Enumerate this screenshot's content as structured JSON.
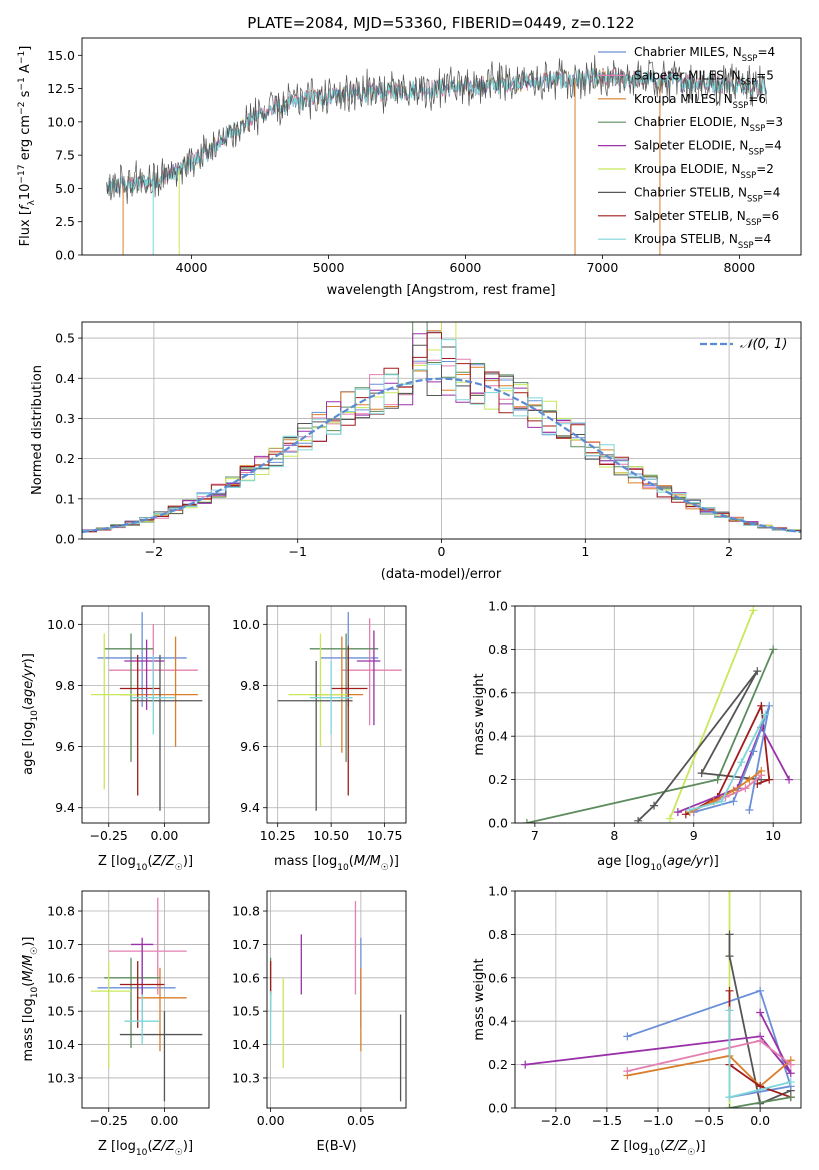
{
  "colors": {
    "chabrier_miles": "#6A8FD8",
    "salpeter_miles": "#E47FB0",
    "kroupa_miles": "#D97E2A",
    "chabrier_elodie": "#5E8B5E",
    "salpeter_elodie": "#9932A8",
    "kroupa_elodie": "#C8E85A",
    "chabrier_stelib": "#555555",
    "salpeter_stelib": "#A01C1C",
    "kroupa_stelib": "#7ED6D8",
    "normal": "#5B8BD4"
  },
  "chart_data": [
    {
      "id": "spectrum",
      "type": "line",
      "title": "PLATE=2084, MJD=53360, FIBERID=0449, z=0.122",
      "xlabel": "wavelength [Angstrom, rest frame]",
      "ylabel": "Flux [f_λ10^-17 erg cm^-2 s^-1 A^-1]",
      "xlim": [
        3200,
        8450
      ],
      "ylim": [
        0,
        16.3
      ],
      "xticks": [
        4000,
        5000,
        6000,
        7000,
        8000
      ],
      "yticks": [
        0.0,
        2.5,
        5.0,
        7.5,
        10.0,
        12.5,
        15.0
      ],
      "legend": "top-right",
      "legend_labels": [
        "Chabrier MILES, N_SSP=4",
        "Salpeter MILES, N_SSP=5",
        "Kroupa MILES, N_SSP=6",
        "Chabrier ELODIE, N_SSP=3",
        "Salpeter ELODIE, N_SSP=4",
        "Kroupa ELODIE, N_SSP=2",
        "Chabrier STELIB, N_SSP=4",
        "Salpeter STELIB, N_SSP=6",
        "Kroupa STELIB, N_SSP=4"
      ],
      "continuum": {
        "x": [
          3370,
          3500,
          3700,
          3900,
          4100,
          4300,
          4500,
          4700,
          4900,
          5100,
          5300,
          5500,
          5800,
          6000,
          6300,
          6600,
          6800,
          7000,
          7300,
          7600,
          7900,
          8200
        ],
        "y": [
          5.0,
          5.2,
          5.5,
          6.3,
          7.6,
          9.3,
          10.6,
          11.3,
          11.8,
          12.1,
          12.2,
          12.3,
          12.5,
          12.6,
          12.9,
          13.1,
          13.2,
          13.3,
          13.2,
          13.0,
          12.8,
          12.7
        ]
      }
    },
    {
      "id": "residuals",
      "type": "bar",
      "xlabel": "(data-model)/error",
      "ylabel": "Normed distribution",
      "xlim": [
        -2.5,
        2.5
      ],
      "ylim": [
        0,
        0.54
      ],
      "xticks": [
        -2,
        -1,
        0,
        1,
        2
      ],
      "xtick_labels": [
        "−2",
        "−1",
        "0",
        "1",
        "2"
      ],
      "yticks": [
        0.0,
        0.1,
        0.2,
        0.3,
        0.4,
        0.5
      ],
      "bin_width": 0.1,
      "legend": "top-right",
      "legend_label": "𝒩(0, 1)"
    },
    {
      "id": "age_vs_Z",
      "type": "scatter",
      "xlabel": "Z [log10(Z/Z☉)]",
      "ylabel": "age  [log10(age/yr)]",
      "xlim": [
        -0.37,
        0.2
      ],
      "ylim": [
        9.35,
        10.06
      ],
      "xticks": [
        -0.25,
        0.0
      ],
      "xtick_labels": [
        "−0.25",
        "0.00"
      ],
      "yticks": [
        9.4,
        9.6,
        9.8,
        10.0
      ],
      "points": [
        {
          "c": "chabrier_miles",
          "x": -0.1,
          "y": 9.89,
          "xe": [
            -0.3,
            0.1
          ],
          "ye": [
            9.73,
            10.04
          ]
        },
        {
          "c": "salpeter_miles",
          "x": -0.05,
          "y": 9.85,
          "xe": [
            -0.25,
            0.15
          ],
          "ye": [
            9.75,
            10.0
          ]
        },
        {
          "c": "kroupa_miles",
          "x": 0.05,
          "y": 9.77,
          "xe": [
            -0.2,
            0.15
          ],
          "ye": [
            9.6,
            9.96
          ]
        },
        {
          "c": "chabrier_elodie",
          "x": -0.15,
          "y": 9.92,
          "xe": [
            -0.27,
            -0.05
          ],
          "ye": [
            9.55,
            9.97
          ]
        },
        {
          "c": "salpeter_elodie",
          "x": -0.08,
          "y": 9.88,
          "xe": [
            -0.18,
            0.0
          ],
          "ye": [
            9.72,
            9.95
          ]
        },
        {
          "c": "kroupa_elodie",
          "x": -0.27,
          "y": 9.77,
          "xe": [
            -0.33,
            -0.12
          ],
          "ye": [
            9.46,
            9.97
          ]
        },
        {
          "c": "chabrier_stelib",
          "x": -0.02,
          "y": 9.75,
          "xe": [
            -0.15,
            0.17
          ],
          "ye": [
            9.39,
            9.9
          ]
        },
        {
          "c": "salpeter_stelib",
          "x": -0.12,
          "y": 9.79,
          "xe": [
            -0.2,
            -0.02
          ],
          "ye": [
            9.44,
            9.9
          ]
        },
        {
          "c": "kroupa_stelib",
          "x": -0.05,
          "y": 9.76,
          "xe": [
            -0.15,
            0.05
          ],
          "ye": [
            9.64,
            9.9
          ]
        }
      ]
    },
    {
      "id": "age_vs_mass",
      "type": "scatter",
      "xlabel": "mass [log10(M/M☉)]",
      "ylabel": "",
      "xlim": [
        10.2,
        10.85
      ],
      "ylim": [
        9.35,
        10.06
      ],
      "xticks": [
        10.25,
        10.5,
        10.75
      ],
      "yticks": [
        9.4,
        9.6,
        9.8,
        10.0
      ],
      "points": [
        {
          "c": "chabrier_miles",
          "x": 10.58,
          "y": 9.89,
          "xe": [
            10.45,
            10.72
          ],
          "ye": [
            9.73,
            10.04
          ]
        },
        {
          "c": "salpeter_miles",
          "x": 10.68,
          "y": 9.85,
          "xe": [
            10.55,
            10.83
          ],
          "ye": [
            9.67,
            10.02
          ]
        },
        {
          "c": "kroupa_miles",
          "x": 10.55,
          "y": 9.77,
          "xe": [
            10.4,
            10.65
          ],
          "ye": [
            9.58,
            9.96
          ]
        },
        {
          "c": "chabrier_elodie",
          "x": 10.57,
          "y": 9.92,
          "xe": [
            10.4,
            10.72
          ],
          "ye": [
            9.55,
            9.97
          ]
        },
        {
          "c": "salpeter_elodie",
          "x": 10.7,
          "y": 9.88,
          "xe": [
            10.62,
            10.73
          ],
          "ye": [
            9.67,
            9.98
          ]
        },
        {
          "c": "kroupa_elodie",
          "x": 10.45,
          "y": 9.77,
          "xe": [
            10.3,
            10.58
          ],
          "ye": [
            9.6,
            9.97
          ]
        },
        {
          "c": "chabrier_stelib",
          "x": 10.43,
          "y": 9.75,
          "xe": [
            10.25,
            10.6
          ],
          "ye": [
            9.39,
            9.88
          ]
        },
        {
          "c": "salpeter_stelib",
          "x": 10.58,
          "y": 9.79,
          "xe": [
            10.5,
            10.67
          ],
          "ye": [
            9.44,
            9.93
          ]
        },
        {
          "c": "kroupa_stelib",
          "x": 10.5,
          "y": 9.76,
          "xe": [
            10.4,
            10.6
          ],
          "ye": [
            9.64,
            9.88
          ]
        }
      ]
    },
    {
      "id": "weight_vs_age",
      "type": "line",
      "xlabel": "age  [log10(age/yr)]",
      "ylabel": "mass weight",
      "xlim": [
        6.75,
        10.35
      ],
      "ylim": [
        0,
        1.0
      ],
      "xticks": [
        7,
        8,
        9,
        10
      ],
      "yticks": [
        0.0,
        0.2,
        0.4,
        0.6,
        0.8,
        1.0
      ],
      "series": [
        {
          "c": "kroupa_elodie",
          "x": [
            8.7,
            9.75
          ],
          "y": [
            0.02,
            0.98
          ]
        },
        {
          "c": "chabrier_elodie",
          "x": [
            6.9,
            9.3,
            10.0
          ],
          "y": [
            0.0,
            0.2,
            0.8
          ]
        },
        {
          "c": "chabrier_stelib",
          "x": [
            8.3,
            8.5,
            9.8,
            9.1,
            9.85
          ],
          "y": [
            0.01,
            0.08,
            0.7,
            0.23,
            0.2
          ]
        },
        {
          "c": "salpeter_stelib",
          "x": [
            8.9,
            9.3,
            9.85,
            9.95,
            9.8
          ],
          "y": [
            0.04,
            0.12,
            0.54,
            0.2,
            0.18
          ]
        },
        {
          "c": "salpeter_elodie",
          "x": [
            8.8,
            9.55,
            9.85,
            10.2
          ],
          "y": [
            0.05,
            0.16,
            0.44,
            0.2
          ]
        },
        {
          "c": "chabrier_miles",
          "x": [
            9.0,
            9.5,
            9.75,
            9.95,
            9.7
          ],
          "y": [
            0.05,
            0.1,
            0.33,
            0.54,
            0.06
          ]
        },
        {
          "c": "salpeter_miles",
          "x": [
            9.0,
            9.4,
            9.65,
            9.85
          ],
          "y": [
            0.06,
            0.12,
            0.16,
            0.22
          ]
        },
        {
          "c": "kroupa_miles",
          "x": [
            8.95,
            9.25,
            9.5,
            9.7,
            9.85
          ],
          "y": [
            0.05,
            0.1,
            0.15,
            0.2,
            0.24
          ]
        },
        {
          "c": "kroupa_stelib",
          "x": [
            8.95,
            9.35,
            9.6,
            9.9
          ],
          "y": [
            0.06,
            0.1,
            0.28,
            0.5
          ]
        }
      ]
    },
    {
      "id": "mass_vs_Z",
      "type": "scatter",
      "xlabel": "Z [log10(Z/Z☉)]",
      "ylabel": "mass [log10(M/M☉)]",
      "xlim": [
        -0.37,
        0.2
      ],
      "ylim": [
        10.21,
        10.86
      ],
      "xticks": [
        -0.25,
        0.0
      ],
      "xtick_labels": [
        "−0.25",
        "0.00"
      ],
      "yticks": [
        10.3,
        10.4,
        10.5,
        10.6,
        10.7,
        10.8
      ],
      "points": [
        {
          "c": "chabrier_miles",
          "x": -0.1,
          "y": 10.57,
          "xe": [
            -0.3,
            0.05
          ],
          "ye": [
            10.45,
            10.7
          ]
        },
        {
          "c": "salpeter_miles",
          "x": -0.03,
          "y": 10.68,
          "xe": [
            -0.25,
            0.1
          ],
          "ye": [
            10.55,
            10.84
          ]
        },
        {
          "c": "kroupa_miles",
          "x": -0.02,
          "y": 10.54,
          "xe": [
            -0.12,
            0.1
          ],
          "ye": [
            10.38,
            10.63
          ]
        },
        {
          "c": "chabrier_elodie",
          "x": -0.15,
          "y": 10.6,
          "xe": [
            -0.27,
            -0.02
          ],
          "ye": [
            10.39,
            10.66
          ]
        },
        {
          "c": "salpeter_elodie",
          "x": -0.1,
          "y": 10.7,
          "xe": [
            -0.15,
            -0.05
          ],
          "ye": [
            10.55,
            10.72
          ]
        },
        {
          "c": "kroupa_elodie",
          "x": -0.25,
          "y": 10.56,
          "xe": [
            -0.33,
            -0.15
          ],
          "ye": [
            10.33,
            10.65
          ]
        },
        {
          "c": "chabrier_stelib",
          "x": 0.0,
          "y": 10.43,
          "xe": [
            -0.2,
            0.17
          ],
          "ye": [
            10.23,
            10.5
          ]
        },
        {
          "c": "salpeter_stelib",
          "x": -0.12,
          "y": 10.58,
          "xe": [
            -0.2,
            0.0
          ],
          "ye": [
            10.45,
            10.65
          ]
        },
        {
          "c": "kroupa_stelib",
          "x": -0.1,
          "y": 10.47,
          "xe": [
            -0.18,
            -0.02
          ],
          "ye": [
            10.4,
            10.55
          ]
        }
      ]
    },
    {
      "id": "mass_vs_ebv",
      "type": "scatter",
      "xlabel": "E(B-V)",
      "ylabel": "",
      "xlim": [
        -0.002,
        0.075
      ],
      "ylim": [
        10.21,
        10.86
      ],
      "xticks": [
        0.0,
        0.05
      ],
      "xtick_labels": [
        "0.00",
        "0.05"
      ],
      "yticks": [
        10.3,
        10.4,
        10.5,
        10.6,
        10.7,
        10.8
      ],
      "points": [
        {
          "c": "chabrier_miles",
          "x": 0.05,
          "y": 10.57,
          "ye": [
            10.45,
            10.72
          ]
        },
        {
          "c": "salpeter_miles",
          "x": 0.047,
          "y": 10.68,
          "ye": [
            10.55,
            10.83
          ]
        },
        {
          "c": "kroupa_miles",
          "x": 0.05,
          "y": 10.54,
          "ye": [
            10.38,
            10.63
          ]
        },
        {
          "c": "chabrier_elodie",
          "x": 0.0,
          "y": 10.6,
          "ye": [
            10.5,
            10.66
          ]
        },
        {
          "c": "salpeter_elodie",
          "x": 0.017,
          "y": 10.65,
          "ye": [
            10.55,
            10.73
          ]
        },
        {
          "c": "kroupa_elodie",
          "x": 0.007,
          "y": 10.46,
          "ye": [
            10.33,
            10.6
          ]
        },
        {
          "c": "chabrier_stelib",
          "x": 0.072,
          "y": 10.36,
          "ye": [
            10.23,
            10.49
          ]
        },
        {
          "c": "salpeter_stelib",
          "x": 0.0,
          "y": 10.6,
          "ye": [
            10.55,
            10.65
          ]
        },
        {
          "c": "kroupa_stelib",
          "x": 0.0,
          "y": 10.47,
          "ye": [
            10.4,
            10.56
          ]
        }
      ]
    },
    {
      "id": "weight_vs_Z",
      "type": "line",
      "xlabel": "Z [log10(Z/Z☉)]",
      "ylabel": "mass weight",
      "xlim": [
        -2.4,
        0.4
      ],
      "ylim": [
        0,
        1.0
      ],
      "xticks": [
        -2.0,
        -1.5,
        -1.0,
        -0.5,
        0.0
      ],
      "xtick_labels": [
        "−2.0",
        "−1.5",
        "−1.0",
        "−0.5",
        "0.0"
      ],
      "yticks": [
        0.0,
        0.2,
        0.4,
        0.6,
        0.8,
        1.0
      ],
      "series": [
        {
          "c": "kroupa_elodie",
          "x": [
            -0.3,
            -0.3
          ],
          "y": [
            1.0,
            0.0
          ]
        },
        {
          "c": "chabrier_stelib",
          "x": [
            -0.3,
            -0.3,
            0.0,
            0.3
          ],
          "y": [
            0.8,
            0.7,
            0.02,
            0.08
          ]
        },
        {
          "c": "chabrier_miles",
          "x": [
            -1.3,
            0.0,
            0.3,
            -0.3
          ],
          "y": [
            0.33,
            0.54,
            0.1,
            0.05
          ]
        },
        {
          "c": "salpeter_elodie",
          "x": [
            -2.3,
            0.0,
            0.3,
            0.0
          ],
          "y": [
            0.2,
            0.33,
            0.16,
            0.44
          ]
        },
        {
          "c": "kroupa_miles",
          "x": [
            -1.3,
            -0.3,
            0.0,
            0.3
          ],
          "y": [
            0.15,
            0.24,
            0.1,
            0.22
          ]
        },
        {
          "c": "salpeter_miles",
          "x": [
            -1.3,
            0.0,
            0.3
          ],
          "y": [
            0.17,
            0.31,
            0.2
          ]
        },
        {
          "c": "salpeter_stelib",
          "x": [
            -0.3,
            -0.3,
            0.0,
            0.3
          ],
          "y": [
            0.54,
            0.2,
            0.1,
            0.05
          ]
        },
        {
          "c": "kroupa_stelib",
          "x": [
            -0.3,
            -0.3,
            0.3
          ],
          "y": [
            0.45,
            0.05,
            0.12
          ]
        },
        {
          "c": "chabrier_elodie",
          "x": [
            -0.3,
            0.3
          ],
          "y": [
            0.0,
            0.05
          ]
        }
      ]
    }
  ]
}
